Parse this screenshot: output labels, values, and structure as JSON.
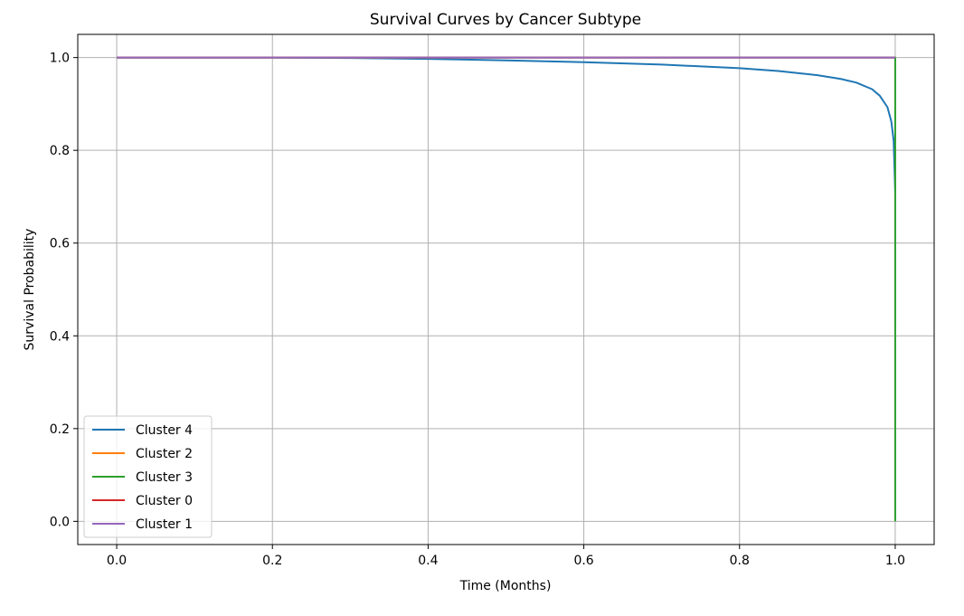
{
  "chart_data": {
    "type": "line",
    "title": "Survival Curves by Cancer Subtype",
    "xlabel": "Time (Months)",
    "ylabel": "Survival Probability",
    "xlim": [
      -0.05,
      1.05
    ],
    "ylim": [
      -0.05,
      1.05
    ],
    "xticks": [
      0.0,
      0.2,
      0.4,
      0.6,
      0.8,
      1.0
    ],
    "xtick_labels": [
      "0.0",
      "0.2",
      "0.4",
      "0.6",
      "0.8",
      "1.0"
    ],
    "yticks": [
      0.0,
      0.2,
      0.4,
      0.6,
      0.8,
      1.0
    ],
    "ytick_labels": [
      "0.0",
      "0.2",
      "0.4",
      "0.6",
      "0.8",
      "1.0"
    ],
    "grid": true,
    "legend_position": "lower-left",
    "series": [
      {
        "name": "Cluster 4",
        "color": "#1f77b4",
        "x": [
          0.0,
          0.1,
          0.2,
          0.3,
          0.4,
          0.5,
          0.6,
          0.7,
          0.8,
          0.85,
          0.9,
          0.93,
          0.95,
          0.97,
          0.98,
          0.99,
          0.995,
          0.998,
          1.0
        ],
        "y": [
          1.0,
          1.0,
          1.0,
          0.999,
          0.997,
          0.994,
          0.99,
          0.985,
          0.977,
          0.971,
          0.962,
          0.954,
          0.946,
          0.932,
          0.918,
          0.893,
          0.862,
          0.82,
          0.71
        ]
      },
      {
        "name": "Cluster 2",
        "color": "#ff7f0e",
        "x": [
          0.0,
          1.0
        ],
        "y": [
          1.0,
          1.0
        ]
      },
      {
        "name": "Cluster 3",
        "color": "#2ca02c",
        "x": [
          0.0,
          1.0,
          1.0
        ],
        "y": [
          1.0,
          1.0,
          0.0
        ]
      },
      {
        "name": "Cluster 0",
        "color": "#d62728",
        "x": [
          0.0,
          1.0
        ],
        "y": [
          1.0,
          1.0
        ]
      },
      {
        "name": "Cluster 1",
        "color": "#9467bd",
        "x": [
          0.0,
          1.0
        ],
        "y": [
          1.0,
          1.0
        ]
      }
    ]
  }
}
